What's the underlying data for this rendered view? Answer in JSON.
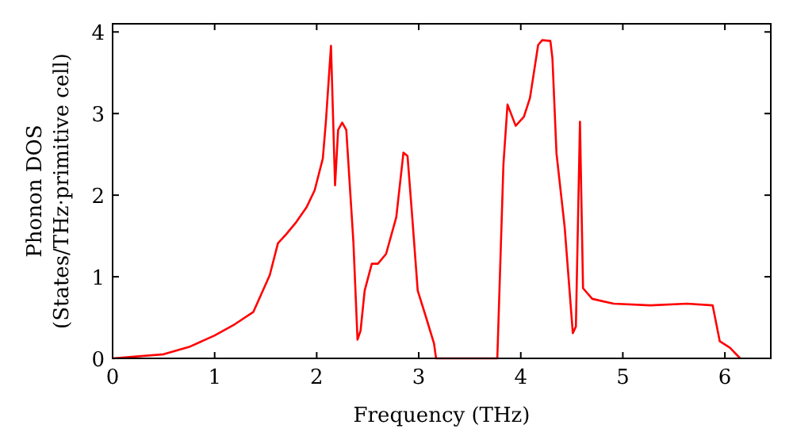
{
  "chart_data": {
    "type": "line",
    "xlabel": "Frequency (THz)",
    "ylabel": "Phonon DOS\n(States/THz·primitive cell)",
    "xlim": [
      0,
      6.45
    ],
    "ylim": [
      0,
      4.1
    ],
    "xticks": [
      0,
      1,
      2,
      3,
      4,
      5,
      6
    ],
    "yticks": [
      0,
      1,
      2,
      3,
      4
    ],
    "grid": false,
    "marker": "none",
    "line_style": "solid",
    "series": [
      {
        "color": "#ff0000",
        "x": [
          0,
          0.5,
          0.75,
          1.0,
          1.2,
          1.38,
          1.54,
          1.62,
          1.7,
          1.8,
          1.9,
          1.98,
          2.06,
          2.09,
          2.14,
          2.18,
          2.21,
          2.25,
          2.29,
          2.36,
          2.4,
          2.43,
          2.47,
          2.54,
          2.6,
          2.68,
          2.78,
          2.85,
          2.89,
          2.94,
          2.99,
          3.07,
          3.15,
          3.17,
          3.77,
          3.83,
          3.87,
          3.95,
          4.03,
          4.09,
          4.17,
          4.21,
          4.29,
          4.31,
          4.35,
          4.43,
          4.51,
          4.54,
          4.58,
          4.61,
          4.7,
          4.91,
          5.27,
          5.63,
          5.88,
          5.95,
          6.05,
          6.15
        ],
        "values": [
          0,
          0.05,
          0.14,
          0.28,
          0.42,
          0.57,
          1.02,
          1.41,
          1.52,
          1.67,
          1.85,
          2.06,
          2.45,
          2.9,
          3.83,
          2.12,
          2.8,
          2.89,
          2.8,
          1.42,
          0.23,
          0.34,
          0.83,
          1.16,
          1.16,
          1.28,
          1.73,
          2.52,
          2.48,
          1.67,
          0.83,
          0.51,
          0.18,
          0,
          0,
          2.38,
          3.11,
          2.85,
          2.96,
          3.19,
          3.84,
          3.9,
          3.89,
          3.68,
          2.51,
          1.61,
          0.31,
          0.39,
          2.9,
          0.86,
          0.73,
          0.67,
          0.65,
          0.67,
          0.65,
          0.21,
          0.13,
          0
        ]
      }
    ]
  }
}
